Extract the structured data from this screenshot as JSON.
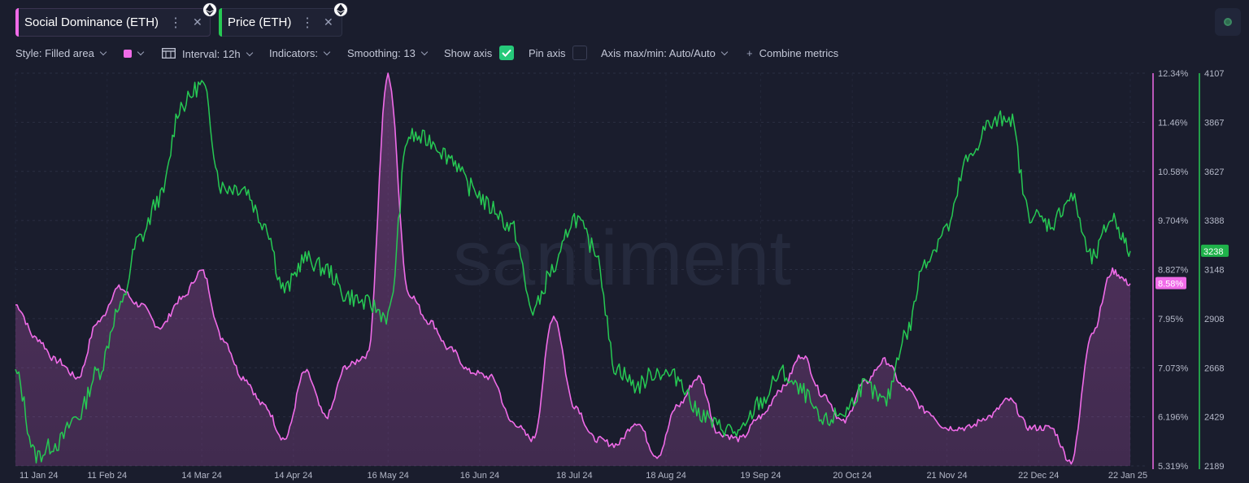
{
  "metrics": [
    {
      "label": "Social Dominance (ETH)",
      "color": "#f06be8",
      "icon": "ethereum-icon"
    },
    {
      "label": "Price (ETH)",
      "color": "#26c953",
      "icon": "ethereum-icon"
    }
  ],
  "toolbar": {
    "style_label": "Style: Filled area",
    "swatch_color": "#f06be8",
    "interval_label": "Interval: 12h",
    "indicators_label": "Indicators:",
    "smoothing_label": "Smoothing: 13",
    "show_axis_label": "Show axis",
    "show_axis_checked": true,
    "pin_axis_label": "Pin axis",
    "pin_axis_checked": false,
    "axis_maxmin_label": "Axis max/min: Auto/Auto",
    "combine_label": "Combine metrics"
  },
  "watermark": "santiment",
  "chart_data": {
    "type": "area",
    "x_ticks": [
      "11 Jan 24",
      "11 Feb 24",
      "14 Mar 24",
      "14 Apr 24",
      "16 May 24",
      "16 Jun 24",
      "18 Jul 24",
      "18 Aug 24",
      "19 Sep 24",
      "20 Oct 24",
      "21 Nov 24",
      "22 Dec 24",
      "22 Jan 25"
    ],
    "grid": true,
    "series": [
      {
        "name": "Social Dominance (ETH)",
        "unit": "%",
        "color": "#f06be8",
        "style": "filled area",
        "axis_ticks": [
          "12.34%",
          "11.46%",
          "10.58%",
          "9.704%",
          "8.827%",
          "7.95%",
          "7.073%",
          "6.196%",
          "5.319%"
        ],
        "ylim": [
          5.319,
          12.34
        ],
        "latest_label": "8.58%",
        "x": [
          "2024-01-11",
          "2024-01-18",
          "2024-01-25",
          "2024-02-01",
          "2024-02-08",
          "2024-02-15",
          "2024-02-22",
          "2024-02-29",
          "2024-03-07",
          "2024-03-14",
          "2024-03-21",
          "2024-03-28",
          "2024-04-04",
          "2024-04-11",
          "2024-04-18",
          "2024-04-25",
          "2024-05-02",
          "2024-05-09",
          "2024-05-16",
          "2024-05-23",
          "2024-05-30",
          "2024-06-06",
          "2024-06-13",
          "2024-06-20",
          "2024-06-27",
          "2024-07-04",
          "2024-07-11",
          "2024-07-18",
          "2024-07-25",
          "2024-08-01",
          "2024-08-08",
          "2024-08-15",
          "2024-08-22",
          "2024-08-29",
          "2024-09-05",
          "2024-09-12",
          "2024-09-19",
          "2024-09-26",
          "2024-10-03",
          "2024-10-10",
          "2024-10-17",
          "2024-10-24",
          "2024-10-31",
          "2024-11-07",
          "2024-11-14",
          "2024-11-21",
          "2024-11-28",
          "2024-12-05",
          "2024-12-12",
          "2024-12-19",
          "2024-12-26",
          "2025-01-02",
          "2025-01-09",
          "2025-01-16",
          "2025-01-22"
        ],
        "values": [
          8.2,
          7.6,
          7.2,
          6.9,
          7.9,
          8.5,
          8.2,
          7.8,
          8.3,
          8.8,
          7.6,
          6.9,
          6.4,
          5.8,
          7.0,
          6.2,
          7.1,
          7.3,
          12.3,
          8.4,
          7.9,
          7.4,
          7.0,
          6.9,
          6.1,
          5.8,
          8.0,
          6.4,
          5.8,
          5.7,
          6.1,
          5.5,
          6.4,
          6.9,
          5.9,
          5.8,
          6.2,
          6.7,
          7.3,
          6.6,
          6.1,
          6.8,
          7.2,
          6.7,
          6.3,
          6.0,
          6.0,
          6.2,
          6.5,
          6.0,
          6.0,
          5.4,
          7.7,
          8.8,
          8.58
        ]
      },
      {
        "name": "Price (ETH)",
        "unit": "USD",
        "color": "#26c953",
        "style": "line",
        "axis_ticks": [
          "4107",
          "3867",
          "3627",
          "3388",
          "3148",
          "2908",
          "2668",
          "2429",
          "2189"
        ],
        "ylim": [
          2189,
          4107
        ],
        "latest_label": "3238",
        "x": [
          "2024-01-11",
          "2024-01-18",
          "2024-01-25",
          "2024-02-01",
          "2024-02-08",
          "2024-02-15",
          "2024-02-22",
          "2024-02-29",
          "2024-03-07",
          "2024-03-14",
          "2024-03-21",
          "2024-03-28",
          "2024-04-04",
          "2024-04-11",
          "2024-04-18",
          "2024-04-25",
          "2024-05-02",
          "2024-05-09",
          "2024-05-16",
          "2024-05-23",
          "2024-05-30",
          "2024-06-06",
          "2024-06-13",
          "2024-06-20",
          "2024-06-27",
          "2024-07-04",
          "2024-07-11",
          "2024-07-18",
          "2024-07-25",
          "2024-08-01",
          "2024-08-08",
          "2024-08-15",
          "2024-08-22",
          "2024-08-29",
          "2024-09-05",
          "2024-09-12",
          "2024-09-19",
          "2024-09-26",
          "2024-10-03",
          "2024-10-10",
          "2024-10-17",
          "2024-10-24",
          "2024-10-31",
          "2024-11-07",
          "2024-11-14",
          "2024-11-21",
          "2024-11-28",
          "2024-12-05",
          "2024-12-12",
          "2024-12-19",
          "2024-12-26",
          "2025-01-02",
          "2025-01-09",
          "2025-01-16",
          "2025-01-22"
        ],
        "values": [
          2640,
          2240,
          2300,
          2430,
          2650,
          2950,
          3300,
          3500,
          3950,
          4050,
          3550,
          3550,
          3380,
          3050,
          3200,
          3150,
          3020,
          2980,
          2920,
          3800,
          3780,
          3700,
          3550,
          3450,
          3350,
          2950,
          3150,
          3400,
          3250,
          2670,
          2580,
          2650,
          2620,
          2450,
          2380,
          2350,
          2500,
          2640,
          2550,
          2400,
          2450,
          2580,
          2500,
          2830,
          3200,
          3350,
          3680,
          3850,
          3900,
          3420,
          3370,
          3500,
          3200,
          3400,
          3238
        ]
      }
    ]
  }
}
